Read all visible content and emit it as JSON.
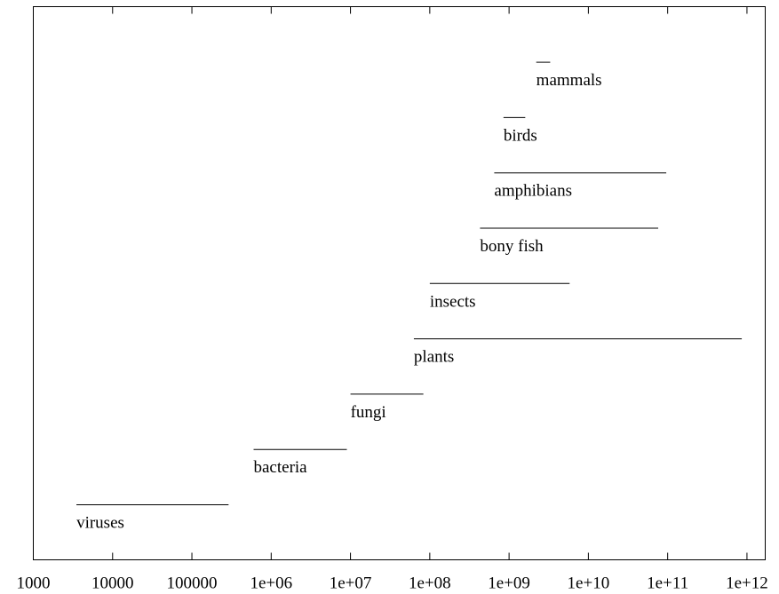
{
  "chart_data": {
    "type": "range",
    "categories": [
      "viruses",
      "bacteria",
      "fungi",
      "plants",
      "insects",
      "bony fish",
      "amphibians",
      "birds",
      "mammals"
    ],
    "low": [
      3500,
      600000,
      10000000,
      63000000,
      100000000,
      430000000,
      650000000,
      850000000,
      2200000000
    ],
    "high": [
      290000,
      9000000,
      83000000,
      860000000000,
      5800000000,
      76000000000,
      96000000000,
      1600000000,
      3300000000
    ],
    "color": "#000000",
    "xscale": "log",
    "xlim": [
      1000,
      1700000000000
    ],
    "xticks": [
      1000,
      10000,
      100000,
      {
        "value": 1000000,
        "label": "1e+06"
      },
      {
        "value": 10000000,
        "label": "1e+07"
      },
      {
        "value": 100000000,
        "label": "1e+08"
      },
      {
        "value": 1000000000,
        "label": "1e+09"
      },
      {
        "value": 10000000000,
        "label": "1e+10"
      },
      {
        "value": 100000000000,
        "label": "1e+11"
      },
      {
        "value": 1000000000000,
        "label": "1e+12"
      }
    ]
  }
}
